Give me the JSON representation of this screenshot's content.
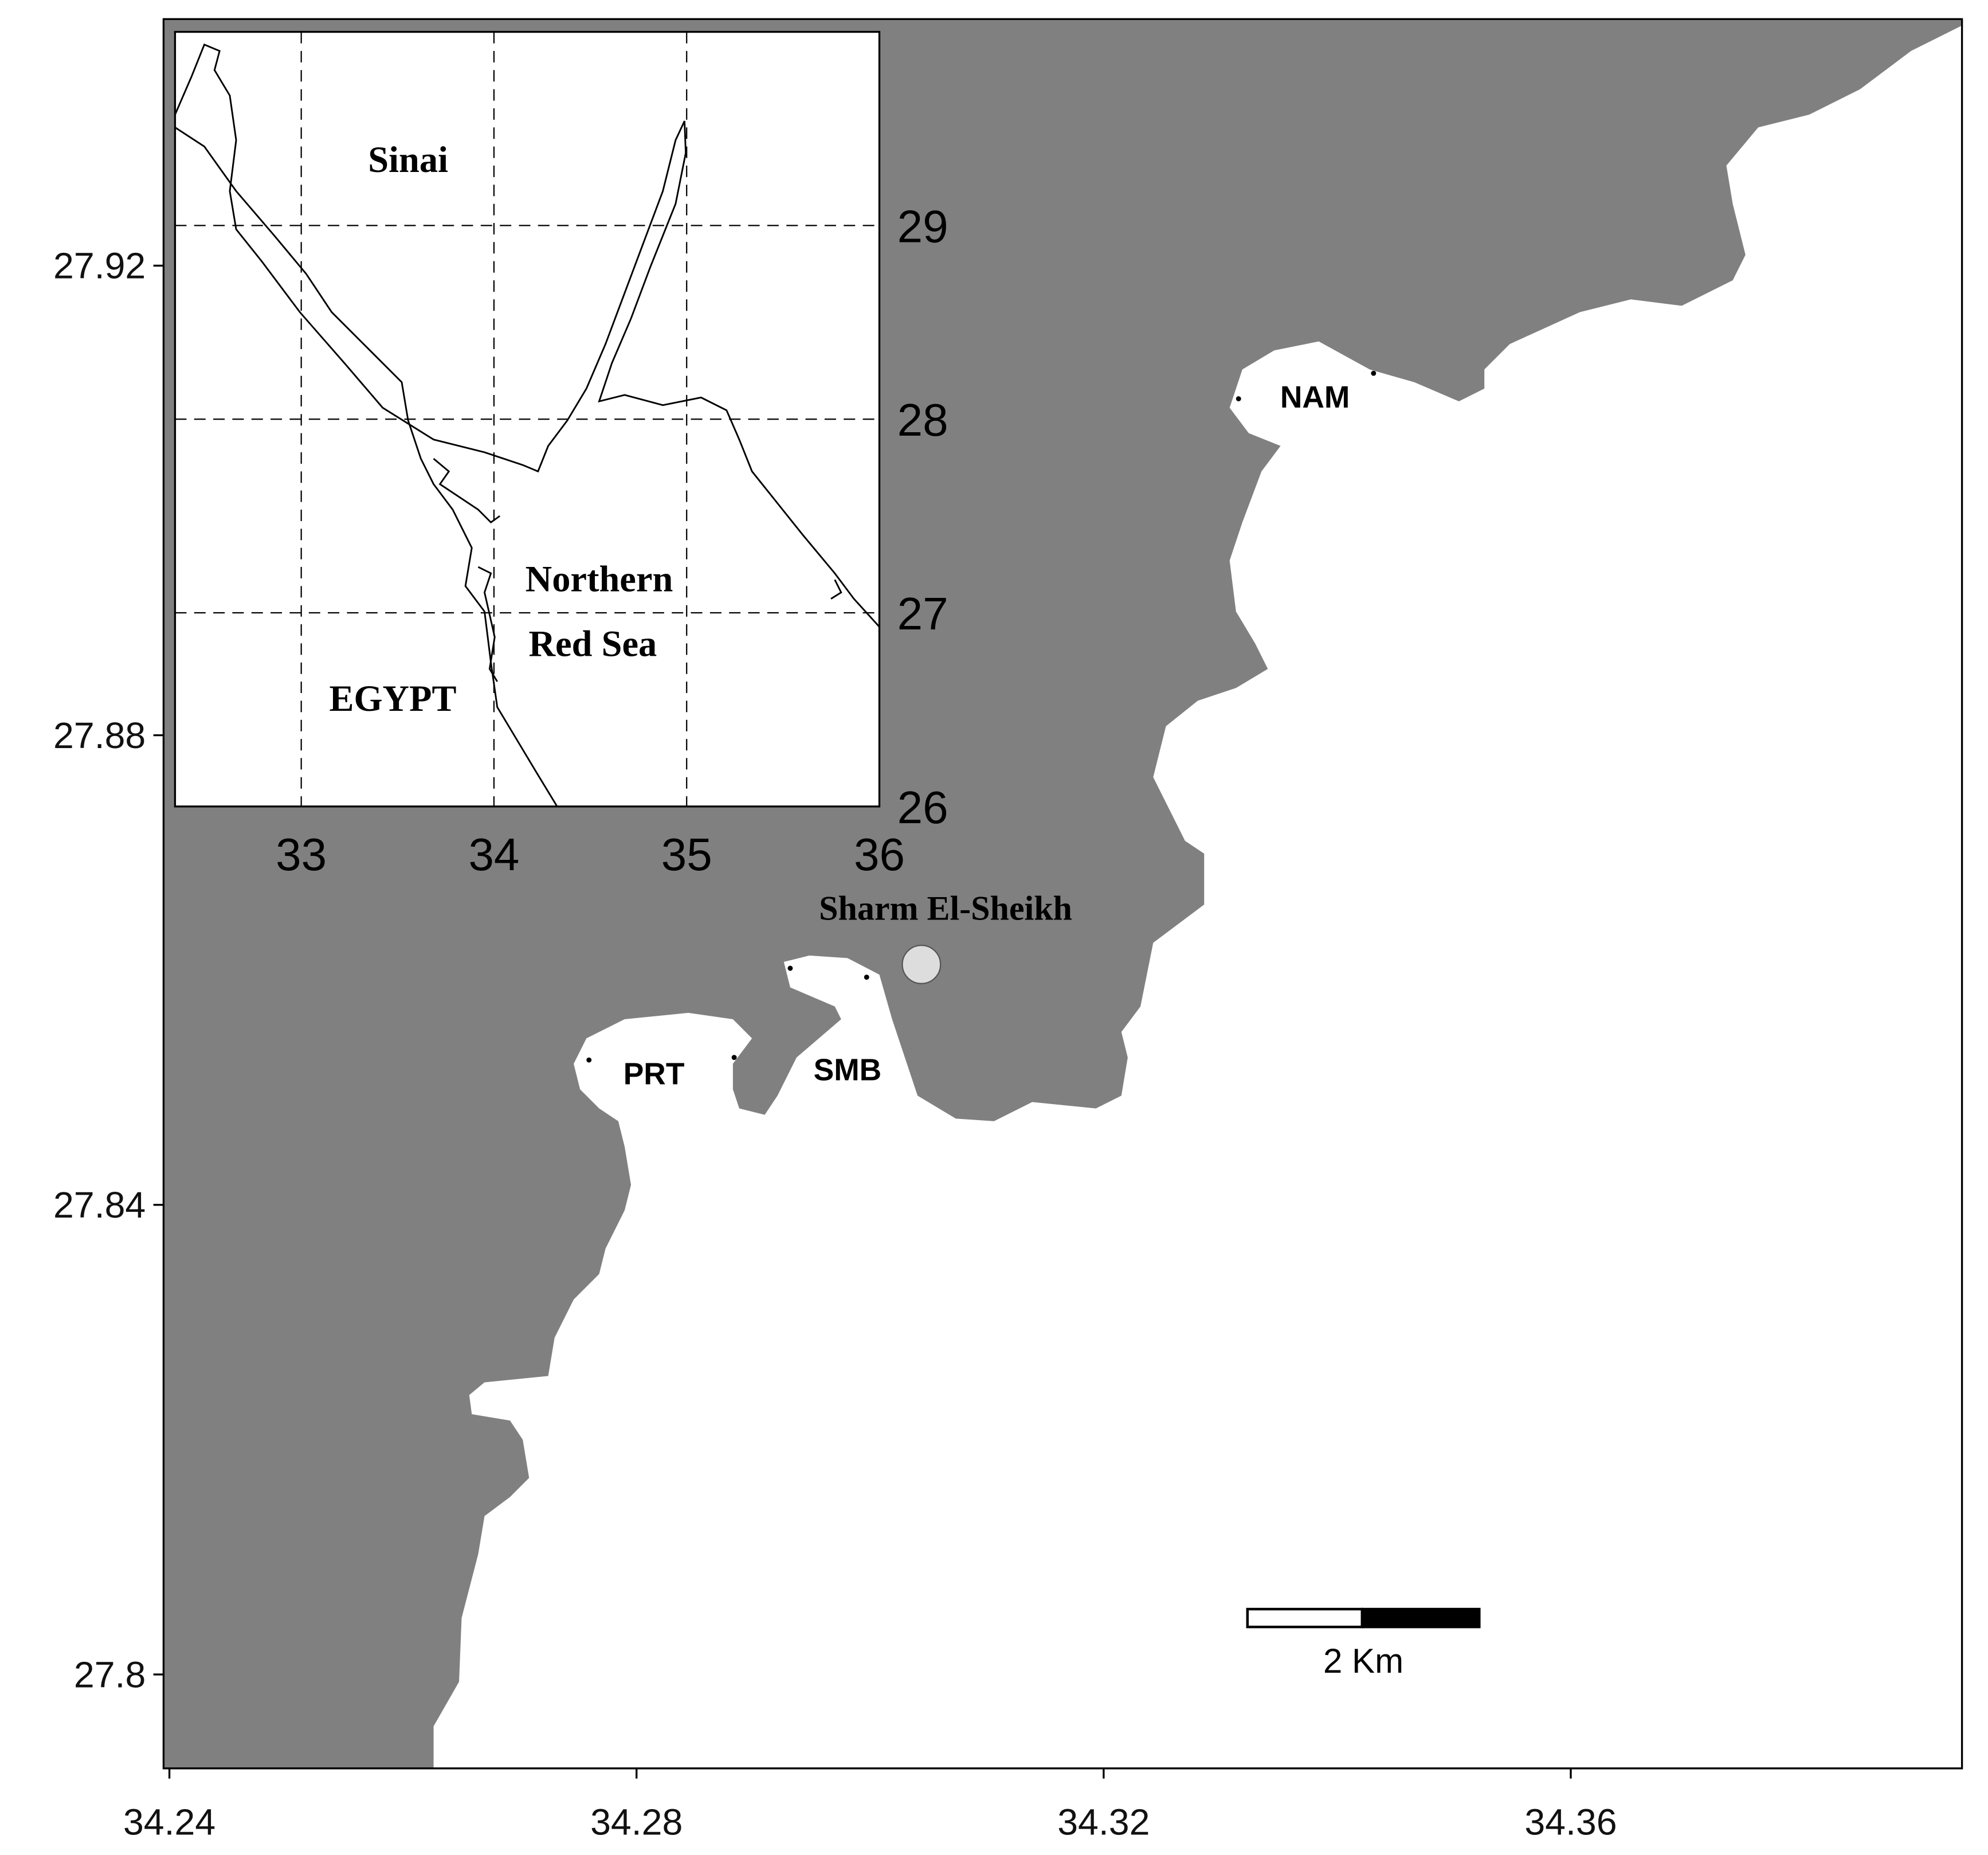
{
  "main": {
    "xlim": [
      34.2395,
      34.3935
    ],
    "ylim": [
      27.792,
      27.941
    ],
    "xticks": [
      34.24,
      34.28,
      34.32,
      34.36
    ],
    "yticks": [
      27.8,
      27.84,
      27.88,
      27.92
    ]
  },
  "inset": {
    "xlim": [
      32.345,
      36
    ],
    "ylim": [
      26,
      30
    ],
    "xticks": [
      33,
      34,
      35,
      36
    ],
    "yticks": [
      26,
      27,
      28,
      29
    ],
    "labels": [
      "Sinai",
      "Northern",
      "Red Sea",
      "EGYPT"
    ]
  },
  "city": "Sharm El-Sheikh",
  "sites": [
    "NAM",
    "PRT",
    "SMB"
  ],
  "scale_bar": "2 Km"
}
